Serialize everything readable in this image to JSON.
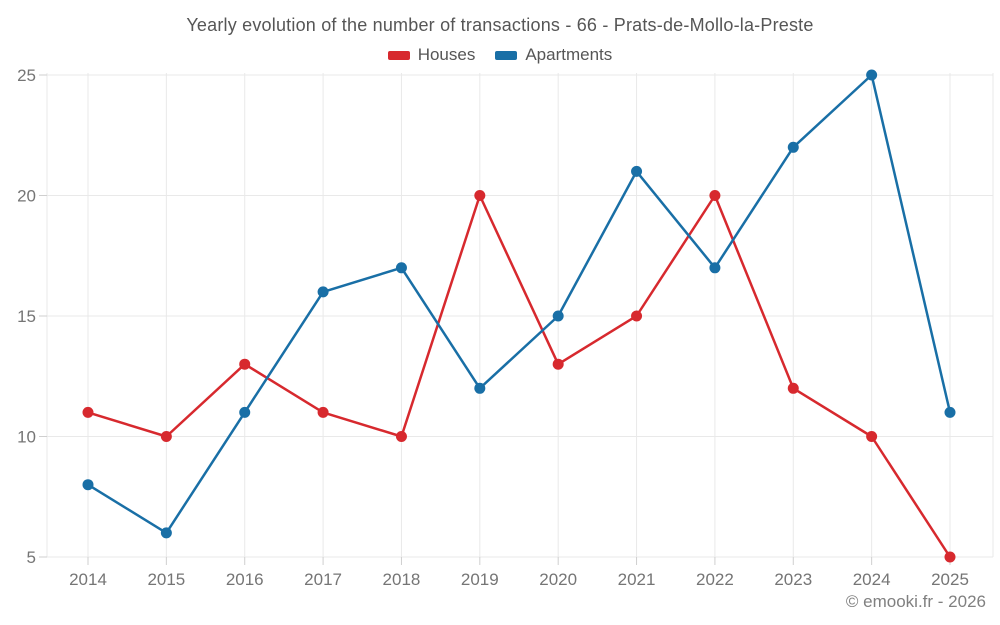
{
  "title": "Yearly evolution of the number of transactions - 66 - Prats-de-Mollo-la-Preste",
  "watermark": "© emooki.fr - 2026",
  "colors": {
    "houses": "#d7292e",
    "apartments": "#196fa6",
    "grid": "#e9e9e9",
    "tick": "#cfcfcf",
    "axis_label": "#757575",
    "title_text": "#565656",
    "watermark_text": "#808080",
    "background": "#ffffff"
  },
  "chart_data": {
    "type": "line",
    "title": "Yearly evolution of the number of transactions - 66 - Prats-de-Mollo-la-Preste",
    "x": [
      2014,
      2015,
      2016,
      2017,
      2018,
      2019,
      2020,
      2021,
      2022,
      2023,
      2024,
      2025
    ],
    "series": [
      {
        "name": "Houses",
        "color": "#d7292e",
        "values": [
          11,
          10,
          13,
          11,
          10,
          20,
          13,
          15,
          20,
          12,
          10,
          5
        ]
      },
      {
        "name": "Apartments",
        "color": "#196fa6",
        "values": [
          8,
          6,
          11,
          16,
          17,
          12,
          15,
          21,
          17,
          22,
          25,
          11
        ]
      }
    ],
    "xlabel": "",
    "ylabel": "",
    "ylim": [
      5,
      25
    ],
    "yticks": [
      5,
      10,
      15,
      20,
      25
    ],
    "grid": true,
    "legend_position": "top-center",
    "marker": "circle",
    "annotation": "© emooki.fr - 2026"
  }
}
